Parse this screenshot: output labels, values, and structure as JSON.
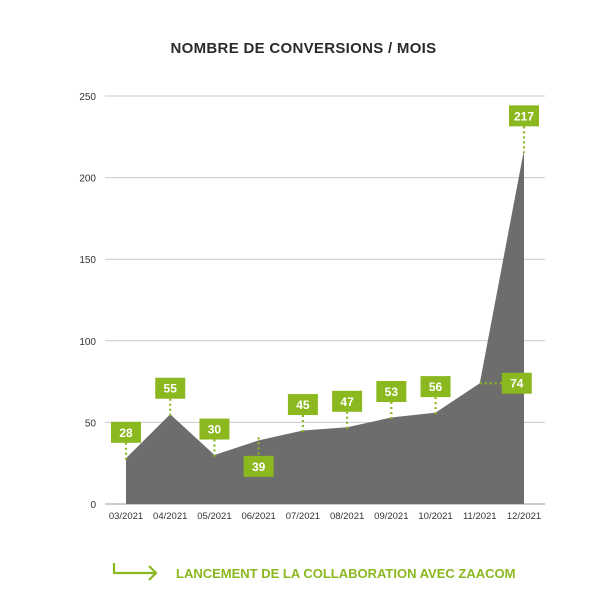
{
  "chart_data": {
    "type": "area",
    "title": "NOMBRE DE CONVERSIONS / MOIS",
    "categories": [
      "03/2021",
      "04/2021",
      "05/2021",
      "06/2021",
      "07/2021",
      "08/2021",
      "09/2021",
      "10/2021",
      "11/2021",
      "12/2021"
    ],
    "values": [
      28,
      55,
      30,
      39,
      45,
      47,
      53,
      56,
      74,
      217
    ],
    "ylim": [
      0,
      250
    ],
    "yticks": [
      0,
      50,
      100,
      150,
      200,
      250
    ],
    "grid": true,
    "legend": {
      "label": "LANCEMENT DE LA COLLABORATION AVEC ZAACOM",
      "placement": "bottom"
    },
    "colors": {
      "area": "#6d6d6d",
      "label_bg": "#8bb81f",
      "label_text": "#ffffff",
      "grid": "#c9c9c9",
      "axis_text": "#333333",
      "title": "#2b2b2b"
    }
  }
}
